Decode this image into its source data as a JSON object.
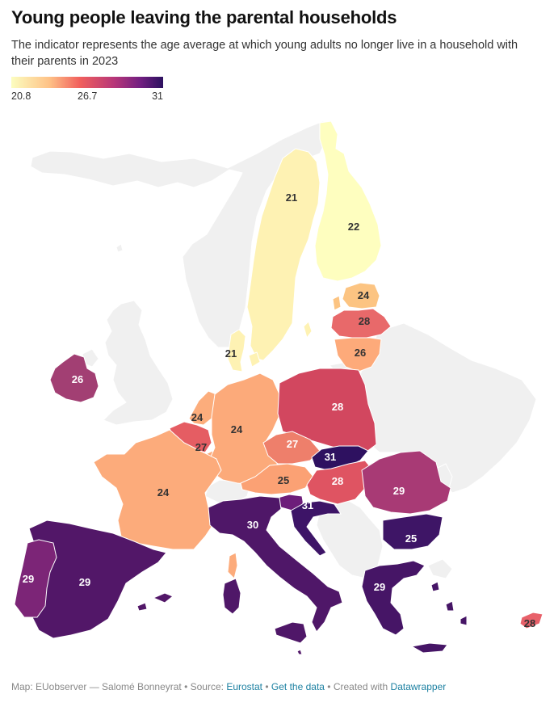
{
  "title": "Young people leaving the parental households",
  "subtitle": "The indicator represents the age average at which young adults no longer live in a household with their parents in 2023",
  "legend": {
    "min_label": "20.8",
    "mid_label": "26.7",
    "max_label": "31",
    "colors": [
      "#fcfdbf",
      "#fec287",
      "#f1605d",
      "#b63679",
      "#721f81",
      "#2c115f"
    ]
  },
  "map": {
    "non_eu_color": "#f0f0f0",
    "regions": [
      {
        "name": "Finland",
        "value": "22",
        "color": "#fefebf"
      },
      {
        "name": "Sweden",
        "value": "21",
        "color": "#fef2b3"
      },
      {
        "name": "Denmark",
        "value": "21",
        "color": "#fef2b3"
      },
      {
        "name": "Estonia",
        "value": "24",
        "color": "#fcc482"
      },
      {
        "name": "Latvia",
        "value": "28",
        "color": "#e8696a"
      },
      {
        "name": "Lithuania",
        "value": "26",
        "color": "#fdaa7a"
      },
      {
        "name": "Ireland",
        "value": "26",
        "color": "#a23f73"
      },
      {
        "name": "Netherlands",
        "value": "24",
        "color": "#fcad7c"
      },
      {
        "name": "Belgium",
        "value": "27",
        "color": "#e55d63"
      },
      {
        "name": "Germany",
        "value": "24",
        "color": "#fcaa7a"
      },
      {
        "name": "Poland",
        "value": "28",
        "color": "#d2475f"
      },
      {
        "name": "Czechia",
        "value": "27",
        "color": "#ee7f6b"
      },
      {
        "name": "Slovakia",
        "value": "31",
        "color": "#2e1160"
      },
      {
        "name": "Austria",
        "value": "25",
        "color": "#fba174"
      },
      {
        "name": "Hungary",
        "value": "28",
        "color": "#df5462"
      },
      {
        "name": "Slovenia",
        "value": "31",
        "color": "#6d1e7a"
      },
      {
        "name": "Croatia",
        "value": "31",
        "color": "#3d1467"
      },
      {
        "name": "Romania",
        "value": "29",
        "color": "#a83a75"
      },
      {
        "name": "Bulgaria",
        "value": "25",
        "color": "#3e1566"
      },
      {
        "name": "France",
        "value": "24",
        "color": "#fcab7b"
      },
      {
        "name": "Italy",
        "value": "30",
        "color": "#4f1768"
      },
      {
        "name": "Spain",
        "value": "29",
        "color": "#521768"
      },
      {
        "name": "Portugal",
        "value": "29",
        "color": "#7c2577"
      },
      {
        "name": "Greece",
        "value": "29",
        "color": "#461566"
      },
      {
        "name": "Cyprus",
        "value": "28",
        "color": "#e8616a"
      },
      {
        "name": "Luxembourg",
        "value": "",
        "color": "#fdaa7a"
      },
      {
        "name": "Malta",
        "value": "",
        "color": "#521768"
      }
    ]
  },
  "footer": {
    "prefix": "Map: EUobserver — Salomé Bonneyrat • Source: ",
    "source_link": "Eurostat",
    "separator": " • ",
    "data_link": "Get the data",
    "created_text": " • Created with ",
    "tool_link": "Datawrapper"
  }
}
